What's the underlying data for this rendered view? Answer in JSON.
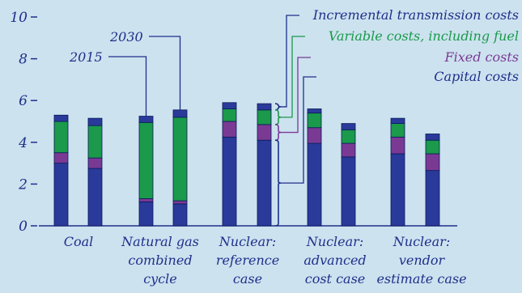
{
  "chart_data": {
    "type": "bar",
    "stacked": true,
    "title": "",
    "xlabel": "",
    "ylabel": "",
    "ylim": [
      0,
      10
    ],
    "yticks": [
      0,
      2,
      4,
      6,
      8,
      10
    ],
    "grid": false,
    "year_labels": [
      "2015",
      "2030"
    ],
    "categories": [
      "Coal",
      "Natural gas combined cycle",
      "Nuclear: reference case",
      "Nuclear: advanced cost case",
      "Nuclear: vendor estimate case"
    ],
    "category_lines": [
      [
        "Coal"
      ],
      [
        "Natural gas",
        "combined",
        "cycle"
      ],
      [
        "Nuclear:",
        "reference",
        "case"
      ],
      [
        "Nuclear:",
        "advanced",
        "cost case"
      ],
      [
        "Nuclear:",
        "vendor",
        "estimate case"
      ]
    ],
    "bars": [
      {
        "category": 0,
        "year": "2015",
        "values": [
          3.0,
          0.5,
          1.5,
          0.3
        ]
      },
      {
        "category": 0,
        "year": "2030",
        "values": [
          2.75,
          0.5,
          1.55,
          0.35
        ]
      },
      {
        "category": 1,
        "year": "2015",
        "values": [
          1.15,
          0.15,
          3.65,
          0.3
        ]
      },
      {
        "category": 1,
        "year": "2030",
        "values": [
          1.05,
          0.15,
          4.0,
          0.35
        ]
      },
      {
        "category": 2,
        "year": "2015",
        "values": [
          4.25,
          0.75,
          0.6,
          0.3
        ]
      },
      {
        "category": 2,
        "year": "2030",
        "values": [
          4.1,
          0.75,
          0.7,
          0.3
        ]
      },
      {
        "category": 3,
        "year": "2015",
        "values": [
          3.95,
          0.75,
          0.7,
          0.2
        ]
      },
      {
        "category": 3,
        "year": "2030",
        "values": [
          3.3,
          0.65,
          0.65,
          0.3
        ]
      },
      {
        "category": 4,
        "year": "2015",
        "values": [
          3.45,
          0.8,
          0.65,
          0.25
        ]
      },
      {
        "category": 4,
        "year": "2030",
        "values": [
          2.65,
          0.8,
          0.65,
          0.3
        ]
      }
    ],
    "series": [
      {
        "name": "Capital costs",
        "color": "#2a3a9a"
      },
      {
        "name": "Fixed costs",
        "color": "#7a3a94"
      },
      {
        "name": "Variable costs, including fuel",
        "color": "#1a9a4a"
      },
      {
        "name": "Incremental transmission costs",
        "color": "#2a3a9a"
      }
    ],
    "legend_placement": "top-right",
    "axis_color": "#1f2f8a",
    "background": "#cce2ef"
  }
}
